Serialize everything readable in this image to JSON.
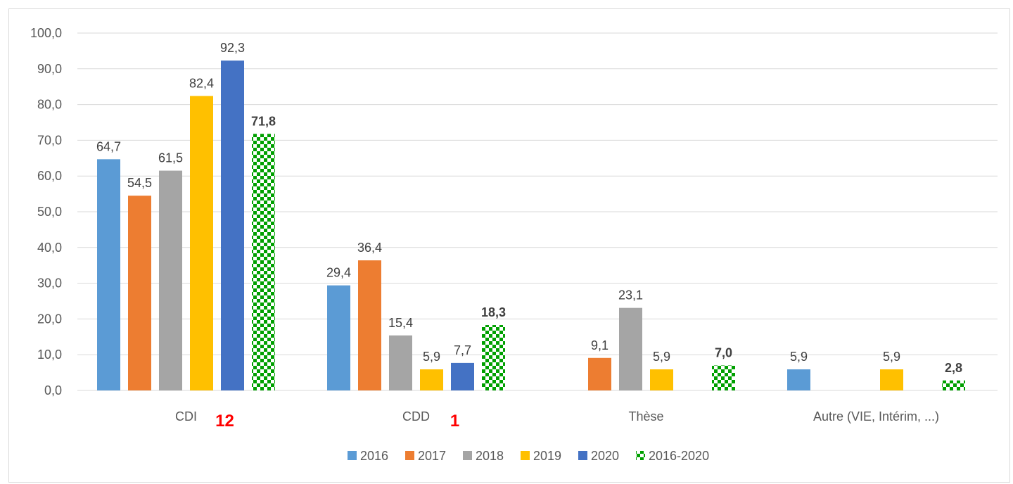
{
  "chart_data": {
    "type": "bar",
    "categories": [
      "CDI",
      "CDD",
      "Thèse",
      "Autre (VIE, Intérim, ...)"
    ],
    "series": [
      {
        "name": "2016",
        "color": "#5b9bd5",
        "values": [
          64.7,
          29.4,
          null,
          5.9
        ],
        "labels": [
          "64,7",
          "29,4",
          "",
          "5,9"
        ]
      },
      {
        "name": "2017",
        "color": "#ed7d31",
        "values": [
          54.5,
          36.4,
          9.1,
          null
        ],
        "labels": [
          "54,5",
          "36,4",
          "9,1",
          ""
        ]
      },
      {
        "name": "2018",
        "color": "#a5a5a5",
        "values": [
          61.5,
          15.4,
          23.1,
          null
        ],
        "labels": [
          "61,5",
          "15,4",
          "23,1",
          ""
        ]
      },
      {
        "name": "2019",
        "color": "#ffc000",
        "values": [
          82.4,
          5.9,
          5.9,
          5.9
        ],
        "labels": [
          "82,4",
          "5,9",
          "5,9",
          "5,9"
        ]
      },
      {
        "name": "2020",
        "color": "#4472c4",
        "values": [
          92.3,
          7.7,
          null,
          null
        ],
        "labels": [
          "92,3",
          "7,7",
          "",
          ""
        ]
      },
      {
        "name": "2016-2020",
        "color": "#00a000",
        "pattern": "checkerboard",
        "values": [
          71.8,
          18.3,
          7.0,
          2.8
        ],
        "labels": [
          "71,8",
          "18,3",
          "7,0",
          "2,8"
        ],
        "bold_labels": true
      }
    ],
    "ylim": [
      0,
      100
    ],
    "yticks": [
      0,
      10,
      20,
      30,
      40,
      50,
      60,
      70,
      80,
      90,
      100
    ],
    "ytick_labels": [
      "0,0",
      "10,0",
      "20,0",
      "30,0",
      "40,0",
      "50,0",
      "60,0",
      "70,0",
      "80,0",
      "90,0",
      "100,0"
    ],
    "grid": true,
    "legend_position": "bottom",
    "annotations": [
      {
        "text": "12",
        "category": "CDI",
        "color": "#ff0000"
      },
      {
        "text": "1",
        "category": "CDD",
        "color": "#ff0000"
      }
    ]
  }
}
